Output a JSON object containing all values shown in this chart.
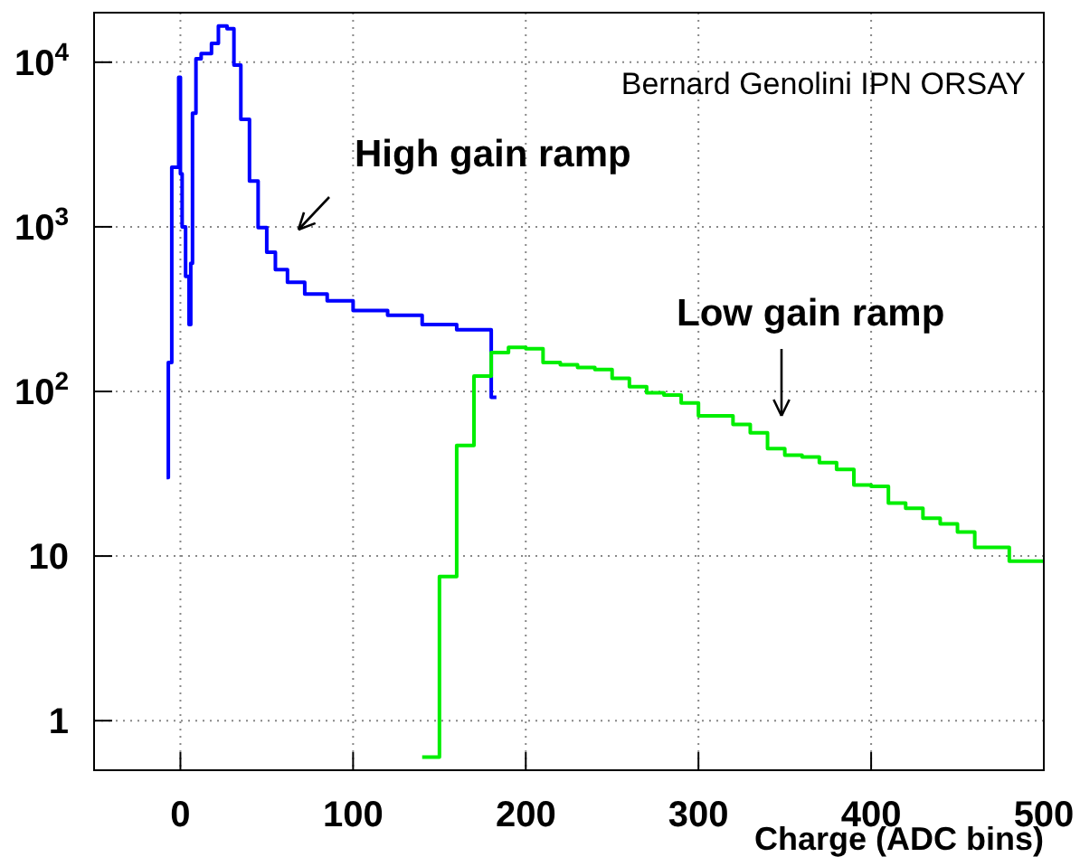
{
  "chart_data": {
    "type": "step",
    "xlabel": "Charge (ADC bins)",
    "xlim": [
      -50,
      500
    ],
    "xticks": [
      0,
      100,
      200,
      300,
      400,
      500
    ],
    "ylim": [
      0.5,
      20000
    ],
    "log": true,
    "grid": true,
    "yticks": [
      1,
      10,
      {
        "value": 100,
        "label": "10$^{2}$"
      },
      {
        "value": 1000,
        "label": "10$^{3}$"
      },
      {
        "value": 10000,
        "label": "10$^{4}$"
      }
    ],
    "annotations": [
      "Bernard Genolini IPN ORSAY",
      "High gain ramp",
      "Low gain ramp"
    ],
    "series": [
      {
        "color": "#0000ff",
        "x": [
          -8,
          -7,
          -5,
          -3,
          -1,
          0,
          1,
          3,
          5,
          6,
          7,
          9,
          12,
          18,
          22,
          27,
          31,
          35,
          40,
          45,
          50,
          55,
          62,
          72,
          85,
          100,
          120,
          140,
          160,
          180,
          183
        ],
        "values": [
          30,
          150,
          2300,
          2300,
          8100,
          2100,
          1000,
          500,
          255,
          600,
          4900,
          10500,
          11300,
          13000,
          16600,
          16000,
          9600,
          4500,
          1900,
          990,
          700,
          550,
          460,
          390,
          355,
          310,
          290,
          255,
          237,
          92,
          92
        ]
      },
      {
        "color": "#00ee00",
        "x": [
          140,
          150,
          160,
          170,
          180,
          190,
          200,
          210,
          220,
          230,
          240,
          250,
          260,
          270,
          280,
          290,
          300,
          310,
          320,
          330,
          340,
          350,
          360,
          370,
          380,
          390,
          400,
          410,
          420,
          430,
          440,
          450,
          460,
          470,
          480,
          490,
          500
        ],
        "values": [
          0.6,
          7.5,
          47,
          124,
          172,
          185,
          182,
          150,
          145,
          140,
          136,
          120,
          107,
          98,
          95,
          85,
          71,
          71,
          63,
          56,
          45,
          41,
          40,
          37,
          33.6,
          27,
          26.5,
          21,
          19.5,
          17,
          15.7,
          14,
          11.3,
          11.3,
          9.3,
          9.3,
          9.3
        ]
      }
    ]
  }
}
